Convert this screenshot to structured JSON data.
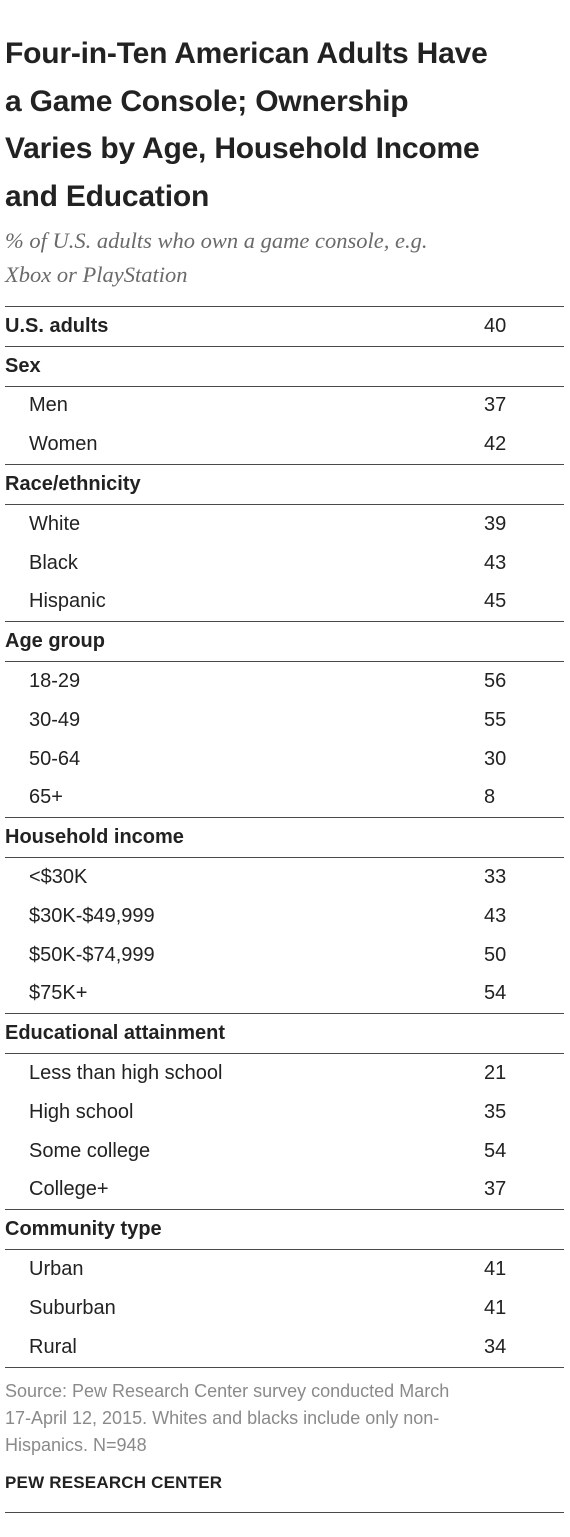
{
  "colors": {
    "text": "#222222",
    "subtitle": "#6a6a6a",
    "source": "#8a8a8a",
    "rule": "#4a4a4a"
  },
  "chart_data": {
    "type": "table",
    "title": "Four-in-Ten  American Adults Have\na Game Console; Ownership\nVaries by Age, Household Income\nand Education",
    "subtitle": "% of U.S. adults who own a game console, e.g.\nXbox or PlayStation",
    "overall": {
      "label": "U.S. adults",
      "value": 40
    },
    "groups": [
      {
        "name": "Sex",
        "rows": [
          {
            "label": "Men",
            "value": 37
          },
          {
            "label": "Women",
            "value": 42
          }
        ]
      },
      {
        "name": "Race/ethnicity",
        "rows": [
          {
            "label": "White",
            "value": 39
          },
          {
            "label": "Black",
            "value": 43
          },
          {
            "label": "Hispanic",
            "value": 45
          }
        ]
      },
      {
        "name": "Age group",
        "rows": [
          {
            "label": "18-29",
            "value": 56
          },
          {
            "label": "30-49",
            "value": 55
          },
          {
            "label": "50-64",
            "value": 30
          },
          {
            "label": "65+",
            "value": 8
          }
        ]
      },
      {
        "name": "Household income",
        "rows": [
          {
            "label": "<$30K",
            "value": 33
          },
          {
            "label": "$30K-$49,999",
            "value": 43
          },
          {
            "label": "$50K-$74,999",
            "value": 50
          },
          {
            "label": "$75K+",
            "value": 54
          }
        ]
      },
      {
        "name": "Educational attainment",
        "rows": [
          {
            "label": "Less than high school",
            "value": 21
          },
          {
            "label": "High school",
            "value": 35
          },
          {
            "label": "Some college",
            "value": 54
          },
          {
            "label": "College+",
            "value": 37
          }
        ]
      },
      {
        "name": "Community type",
        "rows": [
          {
            "label": "Urban",
            "value": 41
          },
          {
            "label": "Suburban",
            "value": 41
          },
          {
            "label": "Rural",
            "value": 34
          }
        ]
      }
    ],
    "source": "Source: Pew Research Center survey conducted March\n17-April 12, 2015. Whites and blacks include only non-\nHispanics. N=948",
    "brand": "PEW RESEARCH CENTER"
  }
}
